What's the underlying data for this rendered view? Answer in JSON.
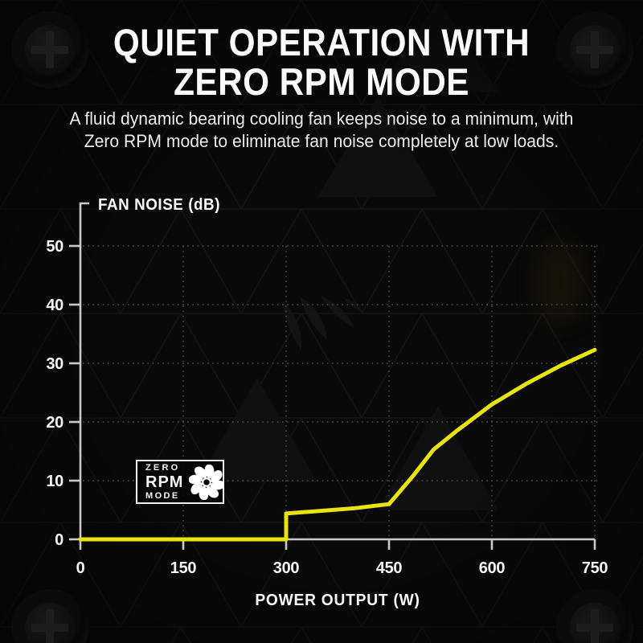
{
  "page": {
    "background_color": "#0a0a0a",
    "accent_color": "#e9e40e",
    "text_color": "#f5f5f5"
  },
  "header": {
    "title_line1": "QUIET OPERATION WITH",
    "title_line2": "ZERO RPM MODE",
    "subtitle_line1": "A fluid dynamic bearing cooling fan keeps noise to a minimum, with",
    "subtitle_line2": "Zero RPM mode to eliminate fan noise completely at low loads."
  },
  "chart_data": {
    "type": "line",
    "title": "",
    "ylabel": "FAN NOISE (dB)",
    "xlabel": "POWER OUTPUT (W)",
    "xlim": [
      0,
      750
    ],
    "ylim": [
      0,
      57
    ],
    "x_ticks": [
      0,
      150,
      300,
      450,
      600,
      750
    ],
    "y_ticks": [
      0,
      10,
      20,
      30,
      40,
      50
    ],
    "grid": "dotted, on x and y ticks",
    "legend_position": "none",
    "line_color": "#e9e40e",
    "axis_color": "#c9c9c9",
    "grid_color": "#4a4a4a",
    "series": [
      {
        "name": "Fan noise (dB) vs power output (W)",
        "points": [
          [
            0,
            0
          ],
          [
            300,
            0
          ],
          [
            300,
            4.4
          ],
          [
            400,
            5.3
          ],
          [
            450,
            6.0
          ],
          [
            485,
            10.8
          ],
          [
            515,
            15.3
          ],
          [
            550,
            18.6
          ],
          [
            600,
            23.0
          ],
          [
            650,
            26.5
          ],
          [
            700,
            29.6
          ],
          [
            750,
            32.3
          ]
        ]
      }
    ],
    "annotations": [
      "Zero RPM region from 0 W to 300 W at 0 dB"
    ]
  },
  "badge": {
    "line1": "ZERO",
    "line2": "RPM",
    "line3": "MODE"
  },
  "icons": {
    "fan": "fan-icon",
    "screw": "phillips-screw-icon",
    "watermark": "corsair-sails-logo-icon"
  }
}
